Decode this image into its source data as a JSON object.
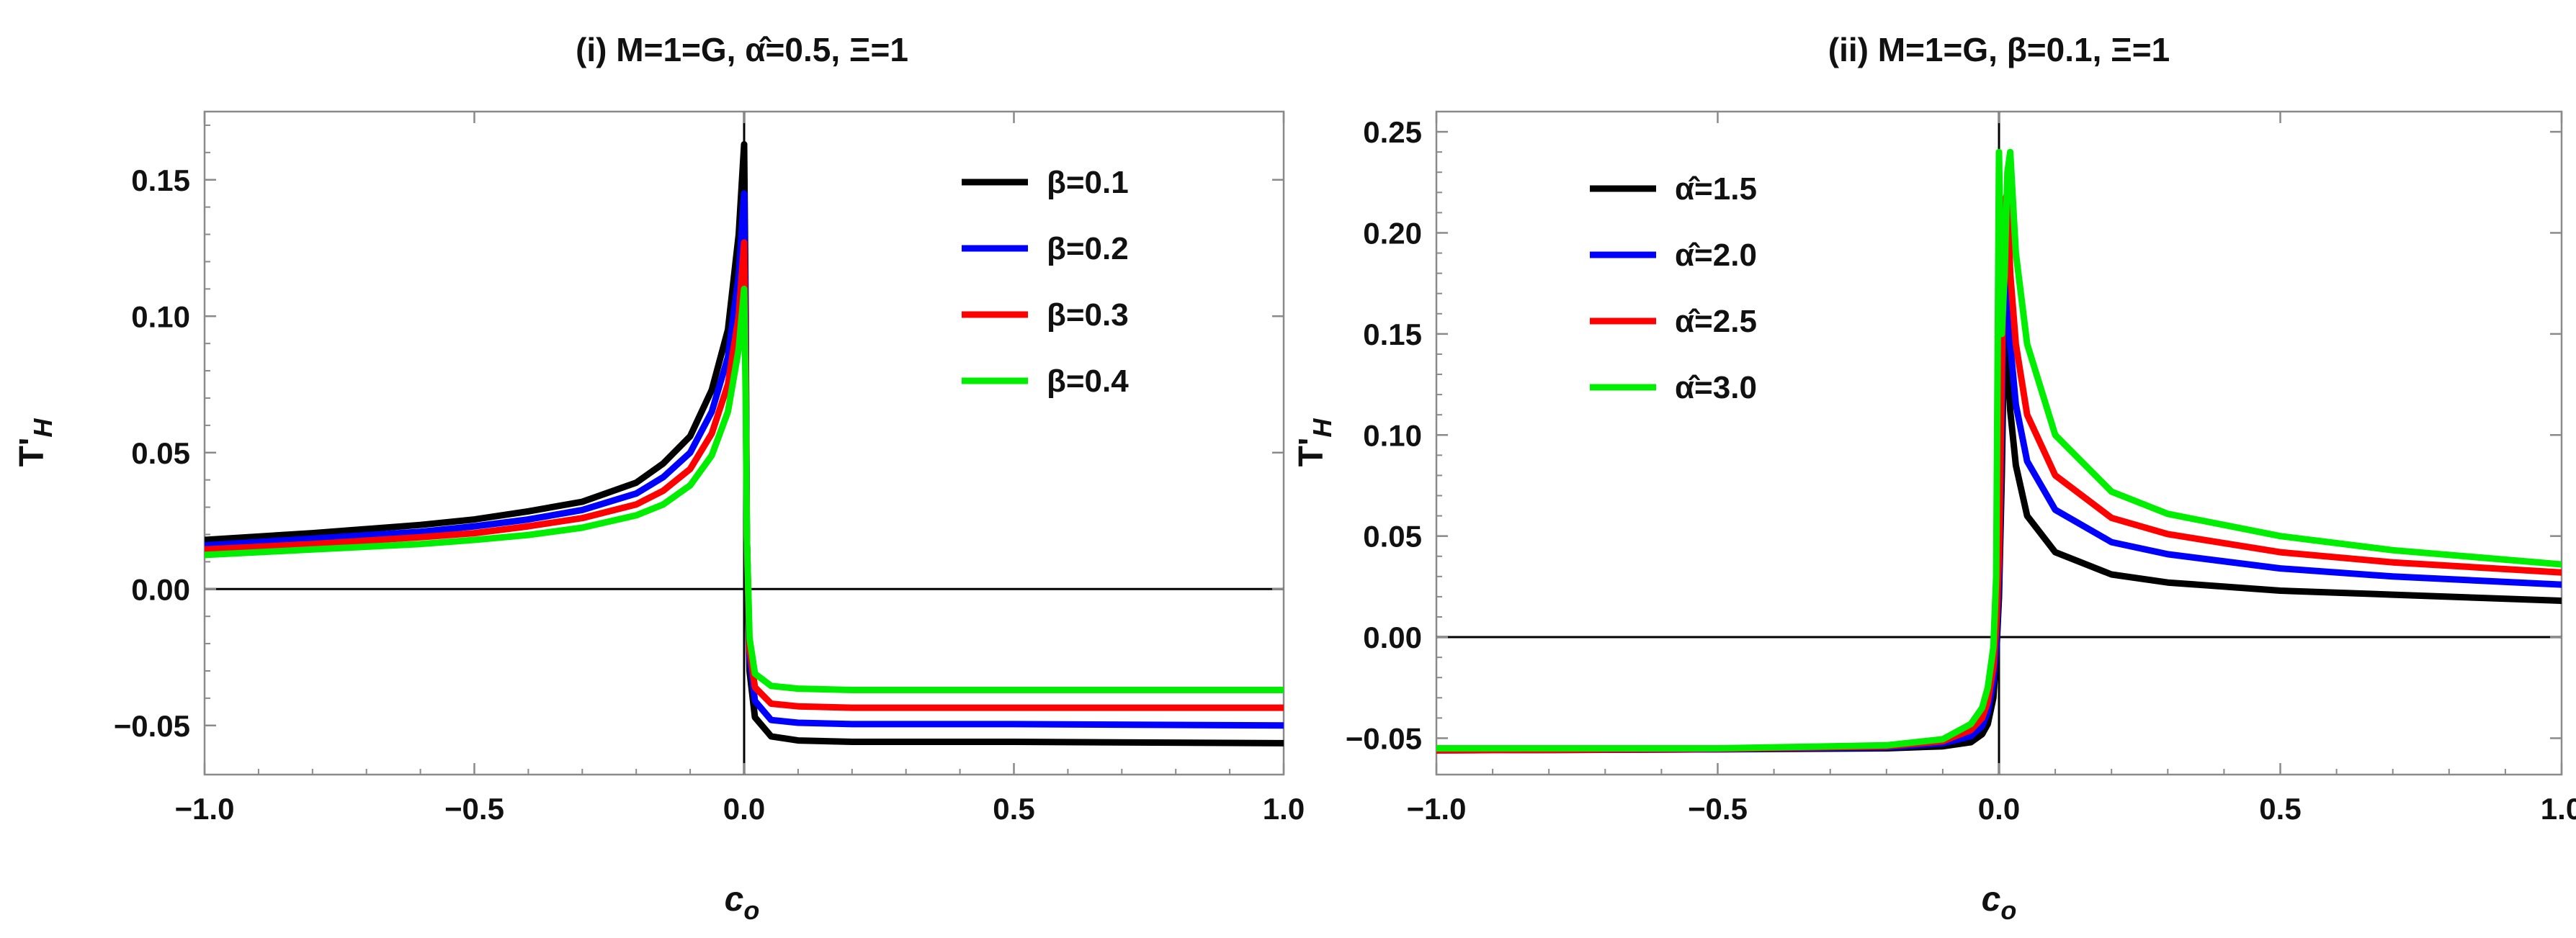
{
  "chart_data": [
    {
      "type": "line",
      "title": "(i) M=1=G, α̂=0.5, Ξ=1",
      "xlabel": "c_o",
      "ylabel": "T'_H",
      "xlim": [
        -1.0,
        1.0
      ],
      "ylim": [
        -0.068,
        0.175
      ],
      "xticks": [
        -1.0,
        -0.5,
        0.0,
        0.5,
        1.0
      ],
      "xtick_labels": [
        "−1.0",
        "−0.5",
        "0.0",
        "0.5",
        "1.0"
      ],
      "yticks": [
        -0.05,
        0.0,
        0.05,
        0.1,
        0.15
      ],
      "ytick_labels": [
        "−0.05",
        "0.00",
        "0.05",
        "0.10",
        "0.15"
      ],
      "grid": false,
      "legend_position": "top-right",
      "series": [
        {
          "name": "β=0.1",
          "color": "#000000",
          "x": [
            -1.0,
            -0.8,
            -0.6,
            -0.5,
            -0.4,
            -0.3,
            -0.2,
            -0.15,
            -0.1,
            -0.06,
            -0.03,
            -0.01,
            0.0,
            0.003,
            0.005,
            0.01,
            0.02,
            0.05,
            0.1,
            0.2,
            0.5,
            1.0
          ],
          "y": [
            0.018,
            0.0205,
            0.0235,
            0.0255,
            0.0285,
            0.032,
            0.039,
            0.046,
            0.056,
            0.073,
            0.095,
            0.13,
            0.163,
            0.1,
            0.02,
            -0.03,
            -0.047,
            -0.054,
            -0.0555,
            -0.056,
            -0.056,
            -0.0565
          ]
        },
        {
          "name": "β=0.2",
          "color": "#0000ff",
          "x": [
            -1.0,
            -0.8,
            -0.6,
            -0.5,
            -0.4,
            -0.3,
            -0.2,
            -0.15,
            -0.1,
            -0.06,
            -0.03,
            -0.01,
            0.0,
            0.003,
            0.005,
            0.01,
            0.02,
            0.05,
            0.1,
            0.2,
            0.5,
            1.0
          ],
          "y": [
            0.016,
            0.0185,
            0.021,
            0.023,
            0.0255,
            0.029,
            0.035,
            0.041,
            0.05,
            0.065,
            0.085,
            0.115,
            0.145,
            0.09,
            0.02,
            -0.025,
            -0.041,
            -0.048,
            -0.049,
            -0.0495,
            -0.0495,
            -0.05
          ]
        },
        {
          "name": "β=0.3",
          "color": "#ff0000",
          "x": [
            -1.0,
            -0.8,
            -0.6,
            -0.5,
            -0.4,
            -0.3,
            -0.2,
            -0.15,
            -0.1,
            -0.06,
            -0.03,
            -0.01,
            0.0,
            0.003,
            0.005,
            0.01,
            0.02,
            0.05,
            0.1,
            0.2,
            0.5,
            1.0
          ],
          "y": [
            0.0145,
            0.0165,
            0.019,
            0.0205,
            0.023,
            0.026,
            0.031,
            0.036,
            0.044,
            0.057,
            0.075,
            0.1,
            0.127,
            0.08,
            0.02,
            -0.022,
            -0.036,
            -0.042,
            -0.043,
            -0.0435,
            -0.0435,
            -0.0435
          ]
        },
        {
          "name": "β=0.4",
          "color": "#00ee00",
          "x": [
            -1.0,
            -0.8,
            -0.6,
            -0.5,
            -0.4,
            -0.3,
            -0.2,
            -0.15,
            -0.1,
            -0.06,
            -0.03,
            -0.01,
            0.0,
            0.003,
            0.005,
            0.01,
            0.02,
            0.05,
            0.1,
            0.2,
            0.5,
            1.0
          ],
          "y": [
            0.0125,
            0.0145,
            0.0165,
            0.018,
            0.0198,
            0.0225,
            0.027,
            0.031,
            0.038,
            0.049,
            0.065,
            0.088,
            0.11,
            0.07,
            0.02,
            -0.018,
            -0.031,
            -0.0355,
            -0.0365,
            -0.037,
            -0.037,
            -0.037
          ]
        }
      ]
    },
    {
      "type": "line",
      "title": "(ii) M=1=G, β=0.1, Ξ=1",
      "xlabel": "c_o",
      "ylabel": "T'_H",
      "xlim": [
        -1.0,
        1.0
      ],
      "ylim": [
        -0.068,
        0.26
      ],
      "xticks": [
        -1.0,
        -0.5,
        0.0,
        0.5,
        1.0
      ],
      "xtick_labels": [
        "−1.0",
        "−0.5",
        "0.0",
        "0.5",
        "1.0"
      ],
      "yticks": [
        -0.05,
        0.0,
        0.05,
        0.1,
        0.15,
        0.2,
        0.25
      ],
      "ytick_labels": [
        "−0.05",
        "0.00",
        "0.05",
        "0.10",
        "0.15",
        "0.20",
        "0.25"
      ],
      "grid": false,
      "legend_position": "top-left",
      "series": [
        {
          "name": "α̂=1.5",
          "color": "#000000",
          "x": [
            -1.0,
            -0.5,
            -0.2,
            -0.1,
            -0.05,
            -0.03,
            -0.02,
            -0.01,
            -0.005,
            0.0,
            0.005,
            0.01,
            0.015,
            0.02,
            0.03,
            0.05,
            0.1,
            0.2,
            0.3,
            0.5,
            0.7,
            1.0
          ],
          "y": [
            -0.056,
            -0.0555,
            -0.055,
            -0.054,
            -0.052,
            -0.048,
            -0.043,
            -0.03,
            -0.01,
            0.02,
            0.08,
            0.163,
            0.14,
            0.112,
            0.085,
            0.06,
            0.042,
            0.031,
            0.027,
            0.023,
            0.021,
            0.018
          ]
        },
        {
          "name": "α̂=2.0",
          "color": "#0000ff",
          "x": [
            -1.0,
            -0.5,
            -0.2,
            -0.1,
            -0.05,
            -0.03,
            -0.02,
            -0.01,
            -0.005,
            0.0,
            0.005,
            0.01,
            0.015,
            0.02,
            0.03,
            0.05,
            0.1,
            0.2,
            0.3,
            0.5,
            0.7,
            1.0
          ],
          "y": [
            -0.056,
            -0.0555,
            -0.0545,
            -0.0525,
            -0.049,
            -0.044,
            -0.037,
            -0.022,
            -0.005,
            0.03,
            0.11,
            0.195,
            0.17,
            0.145,
            0.115,
            0.087,
            0.063,
            0.047,
            0.041,
            0.034,
            0.03,
            0.026
          ]
        },
        {
          "name": "α̂=2.5",
          "color": "#ff0000",
          "x": [
            -1.0,
            -0.5,
            -0.2,
            -0.1,
            -0.05,
            -0.03,
            -0.02,
            -0.01,
            -0.005,
            0.0,
            0.005,
            0.01,
            0.015,
            0.02,
            0.03,
            0.05,
            0.1,
            0.2,
            0.3,
            0.5,
            0.7,
            1.0
          ],
          "y": [
            -0.056,
            -0.0553,
            -0.054,
            -0.0515,
            -0.046,
            -0.04,
            -0.032,
            -0.015,
            0.005,
            0.04,
            0.13,
            0.215,
            0.22,
            0.18,
            0.145,
            0.11,
            0.08,
            0.059,
            0.051,
            0.042,
            0.037,
            0.032
          ]
        },
        {
          "name": "α̂=3.0",
          "color": "#00ee00",
          "x": [
            -1.0,
            -0.5,
            -0.2,
            -0.1,
            -0.05,
            -0.03,
            -0.02,
            -0.01,
            -0.005,
            0.0,
            0.005,
            0.01,
            0.015,
            0.02,
            0.03,
            0.05,
            0.1,
            0.2,
            0.3,
            0.5,
            0.7,
            1.0
          ],
          "y": [
            -0.055,
            -0.055,
            -0.0535,
            -0.0505,
            -0.043,
            -0.035,
            -0.025,
            -0.005,
            0.03,
            0.24,
            0.15,
            0.18,
            0.23,
            0.24,
            0.19,
            0.145,
            0.1,
            0.072,
            0.061,
            0.05,
            0.043,
            0.036
          ]
        }
      ]
    }
  ]
}
